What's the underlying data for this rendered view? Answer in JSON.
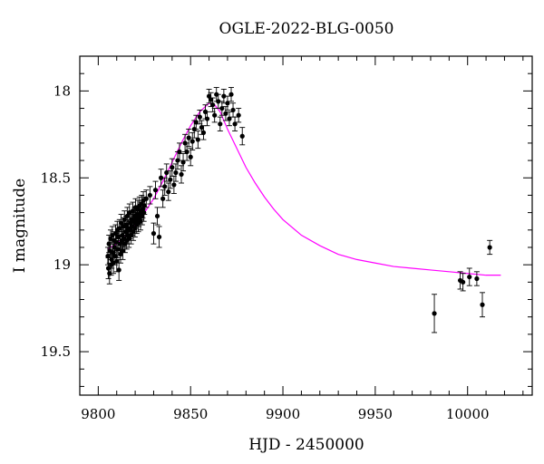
{
  "chart_data": {
    "type": "scatter",
    "title": "OGLE-2022-BLG-0050",
    "xlabel": "HJD - 2450000",
    "ylabel": "I magnitude",
    "xlim": [
      9790,
      10035
    ],
    "ylim": [
      19.75,
      17.8
    ],
    "y_inverted": true,
    "xticks": [
      9800,
      9850,
      9900,
      9950,
      10000
    ],
    "yticks": [
      18,
      18.5,
      19,
      19.5
    ],
    "xtick_labels": [
      "9800",
      "9850",
      "9900",
      "9950",
      "10000"
    ],
    "ytick_labels": [
      "18",
      "18.5",
      "19",
      "19.5"
    ],
    "grid": false,
    "series": [
      {
        "kind": "points",
        "marker_color": "#000000",
        "x": [
          9805.2,
          9805.5,
          9805.8,
          9806.1,
          9806.4,
          9806.7,
          9807.0,
          9807.3,
          9807.6,
          9807.9,
          9808.2,
          9808.5,
          9808.8,
          9809.1,
          9809.4,
          9809.7,
          9810.0,
          9810.3,
          9810.6,
          9810.9,
          9811.2,
          9811.5,
          9811.8,
          9812.1,
          9812.4,
          9812.7,
          9813.0,
          9813.3,
          9813.6,
          9813.9,
          9814.2,
          9814.5,
          9814.8,
          9815.1,
          9815.4,
          9815.7,
          9816.0,
          9816.3,
          9816.6,
          9816.9,
          9817.2,
          9817.5,
          9817.8,
          9818.1,
          9818.4,
          9818.7,
          9819.0,
          9819.3,
          9819.6,
          9819.9,
          9820.2,
          9820.5,
          9820.8,
          9821.1,
          9821.4,
          9821.7,
          9822.0,
          9822.3,
          9822.6,
          9822.9,
          9823.2,
          9823.5,
          9823.8,
          9824.1,
          9824.4,
          9824.7,
          9825.0,
          9826.0,
          9828.0,
          9830.0,
          9831.0,
          9832.0,
          9833.0,
          9834.0,
          9835.0,
          9836.0,
          9837.0,
          9838.0,
          9839.0,
          9840.0,
          9841.0,
          9842.0,
          9843.0,
          9844.0,
          9845.0,
          9846.0,
          9847.0,
          9848.0,
          9849.0,
          9850.0,
          9851.0,
          9852.0,
          9853.0,
          9854.0,
          9855.0,
          9856.0,
          9857.0,
          9858.0,
          9859.0,
          9860.0,
          9861.0,
          9862.0,
          9863.0,
          9864.0,
          9865.0,
          9866.0,
          9867.0,
          9868.0,
          9869.0,
          9870.0,
          9871.0,
          9872.0,
          9873.0,
          9874.0,
          9876.0,
          9878.0,
          9982.0,
          9996.0,
          9997.5,
          10001.0,
          10005.0,
          10008.0,
          10012.0
        ],
        "y": [
          18.95,
          19.02,
          18.88,
          19.05,
          18.92,
          18.85,
          19.0,
          18.97,
          18.83,
          18.93,
          18.99,
          18.86,
          18.9,
          18.95,
          18.82,
          18.87,
          18.98,
          18.8,
          18.91,
          18.84,
          19.03,
          18.79,
          18.88,
          18.94,
          18.76,
          18.86,
          18.83,
          18.92,
          18.78,
          18.85,
          18.74,
          18.88,
          18.81,
          18.77,
          18.86,
          18.72,
          18.83,
          18.79,
          18.85,
          18.7,
          18.8,
          18.76,
          18.83,
          18.74,
          18.78,
          18.69,
          18.81,
          18.75,
          18.72,
          18.79,
          18.67,
          18.74,
          18.77,
          18.71,
          18.68,
          18.76,
          18.73,
          18.66,
          18.71,
          18.75,
          18.69,
          18.65,
          18.72,
          18.68,
          18.63,
          18.7,
          18.66,
          18.62,
          18.6,
          18.82,
          18.57,
          18.72,
          18.84,
          18.5,
          18.62,
          18.55,
          18.47,
          18.58,
          18.51,
          18.44,
          18.54,
          18.47,
          18.4,
          18.35,
          18.48,
          18.41,
          18.3,
          18.35,
          18.27,
          18.38,
          18.29,
          18.22,
          18.18,
          18.28,
          18.15,
          18.21,
          18.24,
          18.12,
          18.16,
          18.03,
          18.05,
          18.08,
          18.14,
          18.02,
          18.06,
          18.19,
          18.1,
          18.03,
          18.13,
          18.07,
          18.16,
          18.02,
          18.11,
          18.19,
          18.14,
          18.26,
          19.28,
          19.09,
          19.1,
          19.07,
          19.08,
          19.23,
          18.9
        ],
        "err": [
          0.05,
          0.06,
          0.05,
          0.06,
          0.05,
          0.05,
          0.06,
          0.05,
          0.05,
          0.05,
          0.06,
          0.05,
          0.05,
          0.05,
          0.05,
          0.05,
          0.06,
          0.05,
          0.05,
          0.05,
          0.06,
          0.05,
          0.05,
          0.05,
          0.05,
          0.05,
          0.05,
          0.05,
          0.05,
          0.05,
          0.05,
          0.05,
          0.05,
          0.05,
          0.05,
          0.05,
          0.05,
          0.05,
          0.05,
          0.05,
          0.05,
          0.05,
          0.05,
          0.05,
          0.05,
          0.05,
          0.05,
          0.05,
          0.05,
          0.05,
          0.05,
          0.05,
          0.05,
          0.05,
          0.05,
          0.05,
          0.05,
          0.05,
          0.05,
          0.05,
          0.05,
          0.05,
          0.05,
          0.05,
          0.05,
          0.05,
          0.05,
          0.05,
          0.05,
          0.06,
          0.05,
          0.05,
          0.06,
          0.05,
          0.05,
          0.05,
          0.05,
          0.05,
          0.05,
          0.05,
          0.05,
          0.05,
          0.05,
          0.05,
          0.05,
          0.05,
          0.05,
          0.05,
          0.05,
          0.05,
          0.05,
          0.05,
          0.04,
          0.05,
          0.04,
          0.04,
          0.04,
          0.04,
          0.04,
          0.04,
          0.04,
          0.04,
          0.04,
          0.04,
          0.04,
          0.04,
          0.04,
          0.04,
          0.04,
          0.04,
          0.04,
          0.04,
          0.04,
          0.04,
          0.04,
          0.05,
          0.11,
          0.05,
          0.05,
          0.05,
          0.04,
          0.07,
          0.04
        ]
      },
      {
        "kind": "model-curve",
        "color": "#ff00ff",
        "x": [
          9805,
          9810,
          9815,
          9820,
          9825,
          9830,
          9835,
          9840,
          9845,
          9850,
          9855,
          9860,
          9863,
          9866,
          9870,
          9875,
          9880,
          9885,
          9890,
          9895,
          9900,
          9910,
          9920,
          9930,
          9940,
          9950,
          9960,
          9970,
          9980,
          9990,
          10000,
          10010,
          10018
        ],
        "y": [
          18.91,
          18.88,
          18.83,
          18.77,
          18.7,
          18.62,
          18.52,
          18.41,
          18.3,
          18.2,
          18.12,
          18.07,
          18.08,
          18.12,
          18.22,
          18.33,
          18.44,
          18.53,
          18.61,
          18.68,
          18.74,
          18.83,
          18.89,
          18.94,
          18.97,
          18.99,
          19.01,
          19.02,
          19.03,
          19.04,
          19.05,
          19.06,
          19.06
        ]
      }
    ]
  }
}
